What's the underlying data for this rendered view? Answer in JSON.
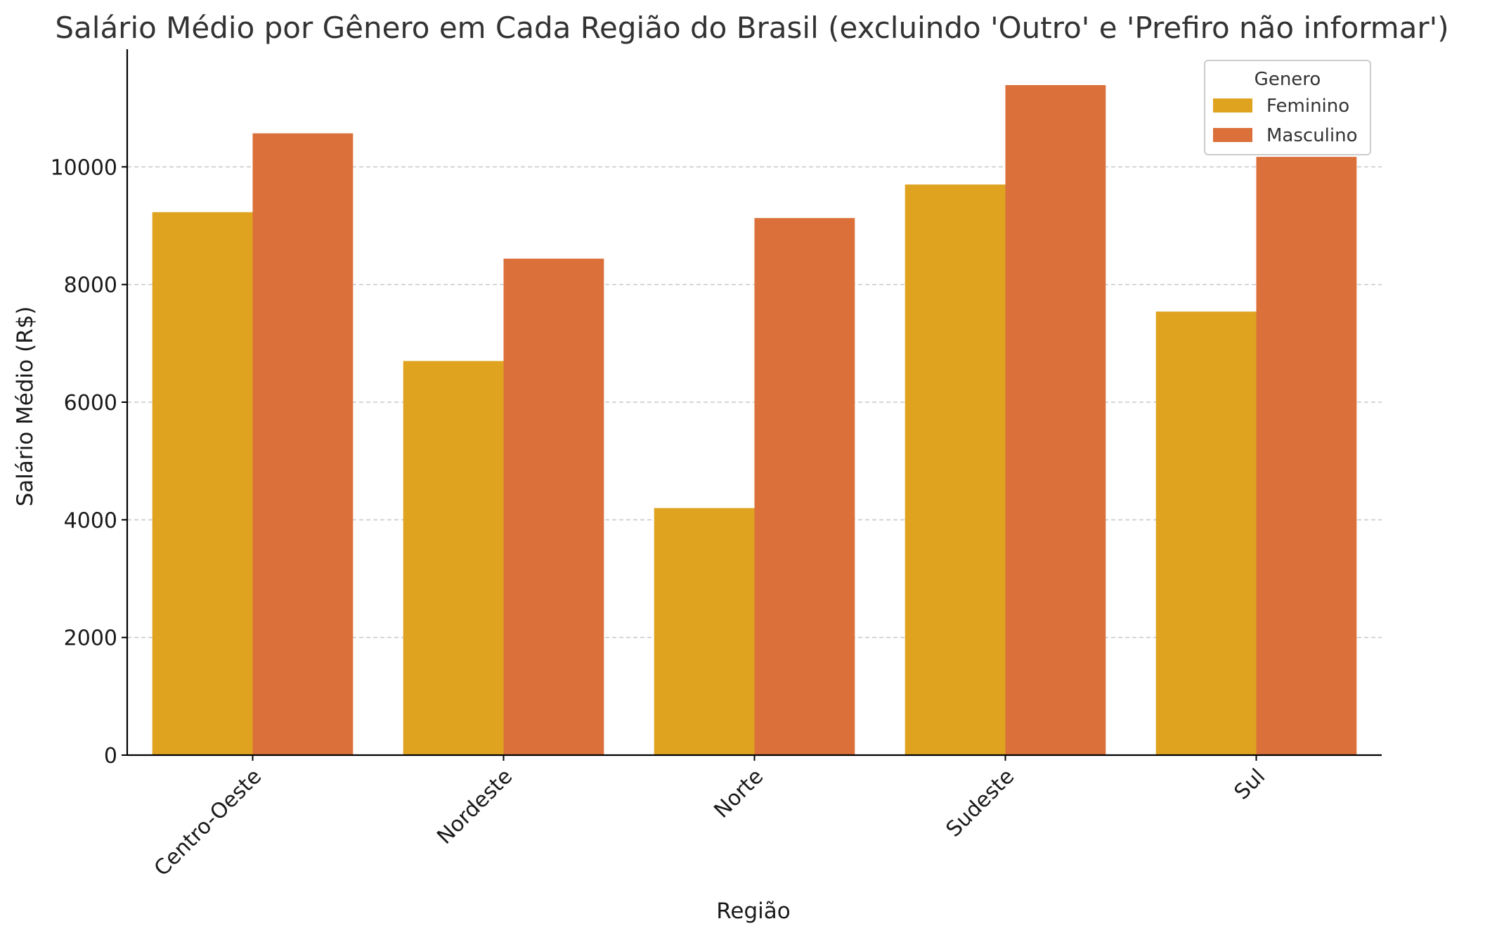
{
  "chart_data": {
    "type": "bar",
    "title": "Salário Médio por Gênero em Cada Região do Brasil (excluindo 'Outro' e 'Prefiro não informar')",
    "xlabel": "Região",
    "ylabel": "Salário Médio (R$)",
    "categories": [
      "Centro-Oeste",
      "Nordeste",
      "Norte",
      "Sudeste",
      "Sul"
    ],
    "series": [
      {
        "name": "Feminino",
        "color": "#DFA320",
        "values": [
          9230,
          6700,
          4200,
          9700,
          7540
        ]
      },
      {
        "name": "Masculino",
        "color": "#DB703A",
        "values": [
          10570,
          8440,
          9130,
          11390,
          10170
        ]
      }
    ],
    "ylim": [
      0,
      12000
    ],
    "yticks": [
      0,
      2000,
      4000,
      6000,
      8000,
      10000
    ],
    "grid": "y-dashed",
    "legend": {
      "title": "Genero",
      "placement": "top-right"
    }
  }
}
